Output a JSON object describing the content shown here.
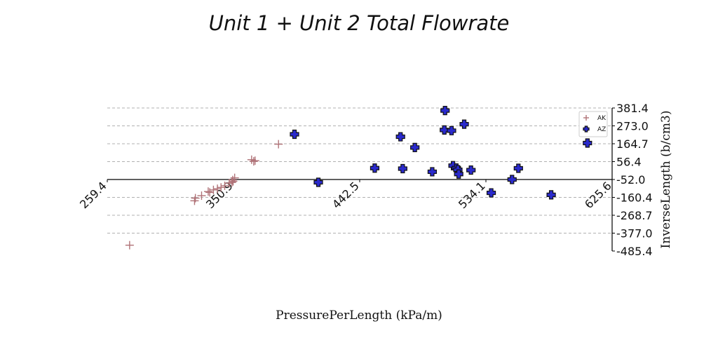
{
  "chart_data": {
    "type": "scatter",
    "title": "Unit 1 + Unit 2 Total Flowrate",
    "xlabel": "PressurePerLength (kPa/m)",
    "ylabel": "InverseLength (b/cm3)",
    "xlim": [
      259.4,
      625.6
    ],
    "ylim": [
      -485.4,
      381.4
    ],
    "x_ticks": [
      "259.4",
      "350.9",
      "442.5",
      "534.1",
      "625.6"
    ],
    "y_ticks": [
      "381.4",
      "273.0",
      "164.7",
      "56.4",
      "-52.0",
      "-160.4",
      "-268.7",
      "-377.0",
      "-485.4"
    ],
    "grid": "horizontal dashed",
    "legend_position": "top-right",
    "series": [
      {
        "name": "AK",
        "marker": "thin-plus",
        "color": "#b07378",
        "points": [
          [
            275.6,
            -450.0
          ],
          [
            322.7,
            -181.0
          ],
          [
            323.3,
            -165.0
          ],
          [
            327.8,
            -150.0
          ],
          [
            332.6,
            -125.0
          ],
          [
            333.7,
            -130.0
          ],
          [
            336.4,
            -115.0
          ],
          [
            339.3,
            -108.0
          ],
          [
            341.9,
            -100.0
          ],
          [
            344.6,
            -90.0
          ],
          [
            347.9,
            -75.0
          ],
          [
            349.8,
            -70.0
          ],
          [
            350.4,
            -55.0
          ],
          [
            350.7,
            -63.0
          ],
          [
            351.8,
            -42.0
          ],
          [
            364.1,
            68.0
          ],
          [
            365.6,
            58.0
          ],
          [
            366.6,
            62.0
          ],
          [
            383.6,
            162.0
          ]
        ]
      },
      {
        "name": "AZ",
        "marker": "thick-plus",
        "color": "#2a2acc",
        "points": [
          [
            395.2,
            222.0
          ],
          [
            412.5,
            -69.0
          ],
          [
            453.4,
            17.0
          ],
          [
            472.1,
            207.0
          ],
          [
            473.7,
            14.0
          ],
          [
            482.5,
            142.0
          ],
          [
            495.1,
            -5.0
          ],
          [
            503.9,
            248.0
          ],
          [
            504.4,
            366.0
          ],
          [
            509.1,
            244.0
          ],
          [
            510.2,
            32.0
          ],
          [
            512.6,
            17.0
          ],
          [
            513.7,
            7.0
          ],
          [
            514.3,
            -19.0
          ],
          [
            518.3,
            283.0
          ],
          [
            523.2,
            5.0
          ],
          [
            537.9,
            -133.0
          ],
          [
            553.0,
            -52.0
          ],
          [
            557.6,
            16.0
          ],
          [
            581.4,
            -145.0
          ],
          [
            607.7,
            169.0
          ]
        ]
      }
    ]
  }
}
